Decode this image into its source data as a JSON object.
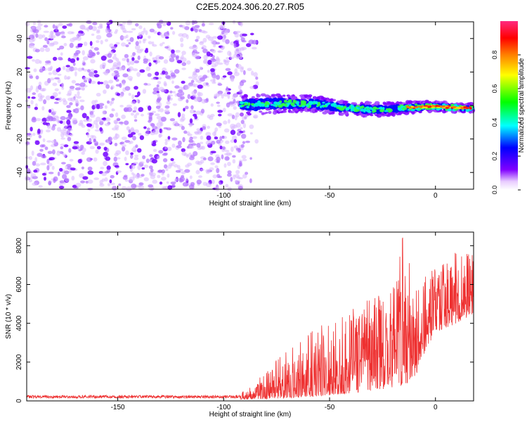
{
  "title": "C2E5.2024.306.20.27.R05",
  "chart_data": [
    {
      "type": "heatmap",
      "name": "spectrogram",
      "xlabel": "Height of straight line (km)",
      "ylabel": "Frequency (Hz)",
      "xlim": [
        -193,
        18
      ],
      "ylim": [
        -50,
        50
      ],
      "xticks": [
        -150,
        -100,
        -50,
        0
      ],
      "xtick_labels": [
        "-150",
        "-100",
        "-50",
        "0"
      ],
      "yticks": [
        -40,
        -20,
        0,
        20,
        40
      ],
      "ytick_labels": [
        "-40",
        "-20",
        "0",
        "20",
        "40"
      ],
      "noise_region_x": [
        -193,
        -90
      ],
      "signal_region_x": [
        -92,
        18
      ],
      "signal_frequency_center": [
        {
          "x": -92,
          "f": 0.3
        },
        {
          "x": -80,
          "f": 0.8
        },
        {
          "x": -70,
          "f": 1.2
        },
        {
          "x": -60,
          "f": 1.0
        },
        {
          "x": -50,
          "f": 0.0
        },
        {
          "x": -40,
          "f": -1.5
        },
        {
          "x": -30,
          "f": -2.5
        },
        {
          "x": -20,
          "f": -2.0
        },
        {
          "x": -10,
          "f": -1.0
        },
        {
          "x": 0,
          "f": -0.5
        },
        {
          "x": 10,
          "f": -1.2
        },
        {
          "x": 18,
          "f": -1.5
        }
      ],
      "colorbar": {
        "label": "Normalized spectral amplitude",
        "range": [
          0,
          1
        ],
        "ticks": [
          0.0,
          0.2,
          0.4,
          0.6,
          0.8
        ],
        "tick_labels": [
          "0.0",
          "0.2",
          "0.4",
          "0.6",
          "0.8"
        ],
        "colors": [
          "#ffffff",
          "#8000ff",
          "#0000ff",
          "#00ffff",
          "#00ff00",
          "#ffff00",
          "#ff8000",
          "#ff0000",
          "#ff2a80"
        ]
      }
    },
    {
      "type": "line",
      "name": "snr",
      "xlabel": "Height of straight line (km)",
      "ylabel": "SNR (10 * v/v)",
      "xlim": [
        -193,
        18
      ],
      "ylim": [
        0,
        8700
      ],
      "xticks": [
        -150,
        -100,
        -50,
        0
      ],
      "xtick_labels": [
        "-150",
        "-100",
        "-50",
        "0"
      ],
      "yticks": [
        0,
        2000,
        4000,
        6000,
        8000
      ],
      "ytick_labels": [
        "0",
        "2000",
        "4000",
        "6000",
        "8000"
      ],
      "color": "#ee3030",
      "envelope": {
        "x": [
          -193,
          -100,
          -90,
          -80,
          -70,
          -60,
          -50,
          -40,
          -30,
          -20,
          -15,
          -10,
          -5,
          0,
          10,
          18
        ],
        "min": [
          50,
          50,
          80,
          100,
          150,
          200,
          300,
          400,
          500,
          700,
          800,
          1100,
          2500,
          3500,
          4000,
          4500
        ],
        "max": [
          300,
          320,
          500,
          1500,
          2800,
          3500,
          4200,
          4800,
          5300,
          5800,
          8700,
          5800,
          6500,
          7000,
          7700,
          7600
        ]
      }
    }
  ]
}
